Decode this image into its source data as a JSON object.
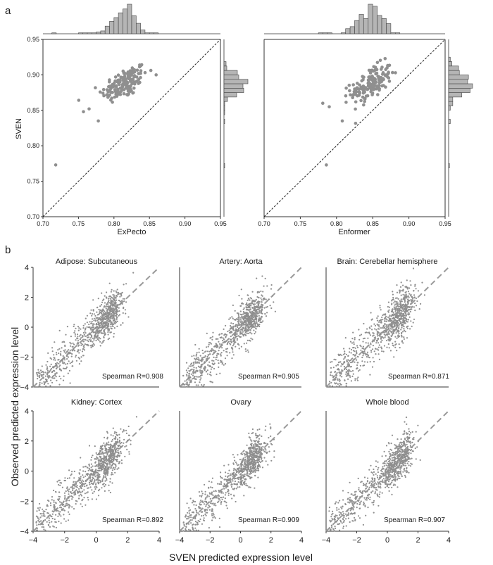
{
  "panel_a_label": "a",
  "panel_b_label": "b",
  "colors": {
    "point": "#8f8f8f",
    "bar": "#b5b5b5",
    "axis": "#333333",
    "diag": "#222222",
    "fit": "#9a9a9a"
  },
  "chart_data": [
    {
      "type": "scatter",
      "id": "a-left",
      "title": "",
      "xlabel": "ExPecto",
      "ylabel": "SVEN",
      "xlim": [
        0.7,
        0.95
      ],
      "ylim": [
        0.7,
        0.95
      ],
      "xticks": [
        "0.70",
        "0.75",
        "0.80",
        "0.85",
        "0.90",
        "0.95"
      ],
      "yticks": [
        "0.70",
        "0.75",
        "0.80",
        "0.85",
        "0.90",
        "0.95"
      ],
      "reference_line": "y = x (dashed)",
      "marginal_histograms": true,
      "point_summary": {
        "n": 160,
        "x_center": 0.815,
        "y_center": 0.888,
        "x_sd": 0.016,
        "y_sd": 0.013,
        "outliers": [
          [
            0.718,
            0.773
          ],
          [
            0.778,
            0.835
          ],
          [
            0.757,
            0.848
          ],
          [
            0.765,
            0.852
          ]
        ]
      }
    },
    {
      "type": "scatter",
      "id": "a-right",
      "title": "",
      "xlabel": "Enformer",
      "ylabel": "",
      "xlim": [
        0.7,
        0.95
      ],
      "ylim": [
        0.7,
        0.95
      ],
      "xticks": [
        "0.70",
        "0.75",
        "0.80",
        "0.85",
        "0.90",
        "0.95"
      ],
      "yticks": [],
      "reference_line": "y = x (dashed)",
      "marginal_histograms": true,
      "point_summary": {
        "n": 160,
        "x_center": 0.848,
        "y_center": 0.888,
        "x_sd": 0.014,
        "y_sd": 0.013,
        "outliers": [
          [
            0.786,
            0.773
          ],
          [
            0.808,
            0.835
          ],
          [
            0.781,
            0.86
          ],
          [
            0.79,
            0.855
          ]
        ]
      }
    },
    {
      "type": "scatter",
      "id": "b1",
      "title": "Adipose: Subcutaneous",
      "annotation": "Spearman R=0.908",
      "xlim": [
        -4,
        4
      ],
      "ylim": [
        -4,
        4
      ],
      "spearman_r": 0.908
    },
    {
      "type": "scatter",
      "id": "b2",
      "title": "Artery: Aorta",
      "annotation": "Spearman R=0.905",
      "xlim": [
        -4,
        4
      ],
      "ylim": [
        -4,
        4
      ],
      "spearman_r": 0.905
    },
    {
      "type": "scatter",
      "id": "b3",
      "title": "Brain: Cerebellar hemisphere",
      "annotation": "Spearman R=0.871",
      "xlim": [
        -4,
        4
      ],
      "ylim": [
        -4,
        4
      ],
      "spearman_r": 0.871
    },
    {
      "type": "scatter",
      "id": "b4",
      "title": "Kidney: Cortex",
      "annotation": "Spearman R=0.892",
      "xlim": [
        -4,
        4
      ],
      "ylim": [
        -4,
        4
      ],
      "spearman_r": 0.892
    },
    {
      "type": "scatter",
      "id": "b5",
      "title": "Ovary",
      "annotation": "Spearman R=0.909",
      "xlim": [
        -4,
        4
      ],
      "ylim": [
        -4,
        4
      ],
      "spearman_r": 0.909
    },
    {
      "type": "scatter",
      "id": "b6",
      "title": "Whole blood",
      "annotation": "Spearman R=0.907",
      "xlim": [
        -4,
        4
      ],
      "ylim": [
        -4,
        4
      ],
      "spearman_r": 0.907
    }
  ],
  "panel_b": {
    "xlabel": "SVEN predicted expression level",
    "ylabel": "Observed predicted expression level",
    "ticks": [
      "−4",
      "−2",
      "0",
      "2",
      "4"
    ],
    "points_per_panel": 900
  }
}
